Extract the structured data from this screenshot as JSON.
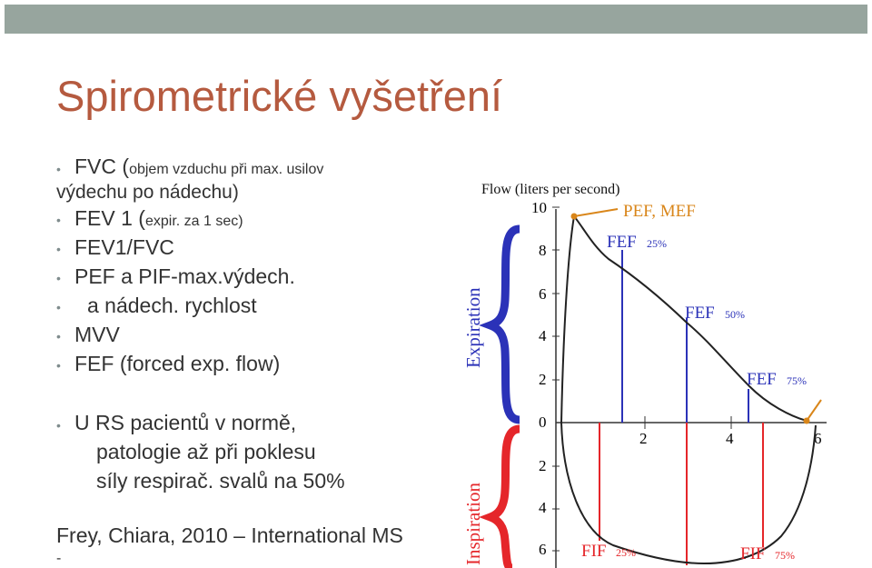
{
  "slide": {
    "title": "Spirometrické vyšetření",
    "bullets": [
      {
        "main": "FVC (",
        "small": "objem vzduchu při max. usilov",
        "cont": "výdechu po nádechu)"
      },
      {
        "main": "FEV 1 (",
        "small": "expir. za 1 sec)"
      },
      {
        "main": "FEV1/FVC"
      },
      {
        "main": "PEF a PIF-max.výdech."
      },
      {
        "main": "a nádech. rychlost"
      },
      {
        "main": "MVV"
      },
      {
        "main": "FEF (forced exp. flow)"
      },
      {
        "main": "U RS pacientů v normě,",
        "line2": "patologie až při poklesu",
        "line3": "síly respirač. svalů na 50%"
      }
    ],
    "footer": "Frey, Chiara, 2010 – International MS",
    "footer_dash": "-"
  },
  "colors": {
    "title": "#b55a3f",
    "band": "#97a59e",
    "expiration": "#2b32b8",
    "inspiration": "#e5262a",
    "peak": "#d9861a"
  },
  "chart_data": {
    "type": "line",
    "title": "Flow (liters per second)",
    "yticks_expiration": [
      "10",
      "8",
      "6",
      "4",
      "2",
      "0"
    ],
    "yticks_inspiration": [
      "2",
      "4",
      "6"
    ],
    "xticks": [
      "2",
      "4",
      "6"
    ],
    "expiration_label": "Expiration",
    "inspiration_label": "Inspiration",
    "annotations": {
      "pef": "PEF, MEF",
      "fef25": "FEF",
      "fef25_sub": "25%",
      "fef50": "FEF",
      "fef50_sub": "50%",
      "fef75": "FEF",
      "fef75_sub": "75%",
      "fif25": "FIF",
      "fif25_sub": "25%",
      "fif75": "FIF",
      "fif75_sub": "75%"
    }
  }
}
